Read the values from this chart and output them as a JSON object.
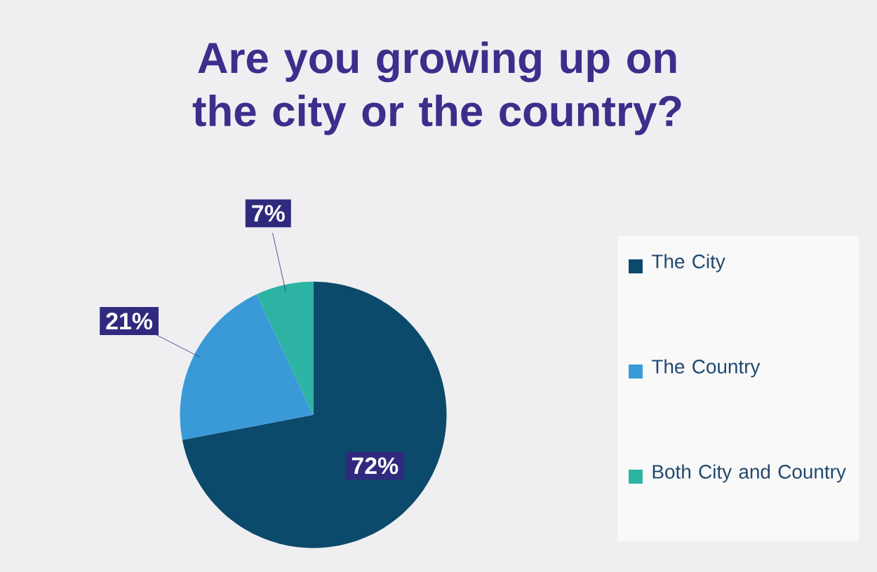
{
  "chart_data": {
    "type": "pie",
    "title": "Are you growing up on the city or the country?",
    "categories": [
      "The City",
      "The Country",
      "Both City and Country"
    ],
    "values": [
      72,
      21,
      7
    ],
    "value_labels": [
      "72%",
      "21%",
      "7%"
    ],
    "colors": [
      "#0c4a6b",
      "#3a9ad8",
      "#2db3a3"
    ],
    "legend": "right"
  }
}
